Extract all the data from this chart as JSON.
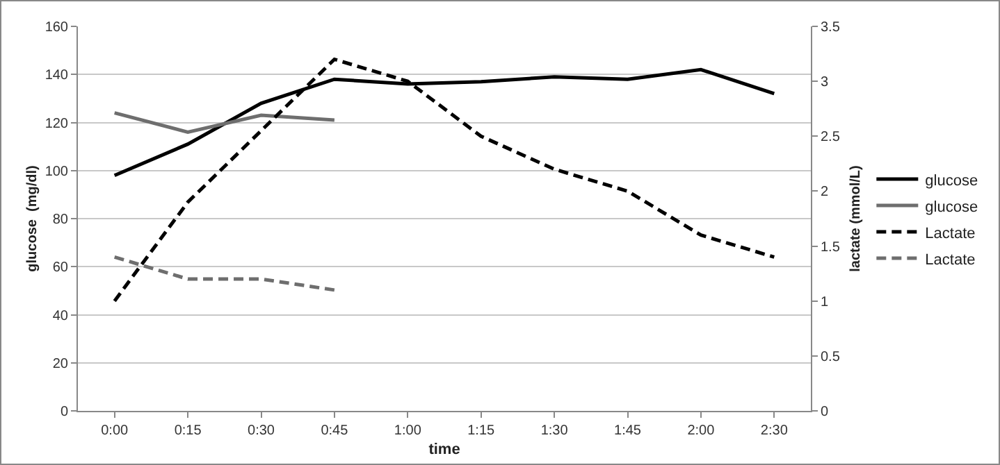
{
  "chart_data": {
    "type": "line",
    "xlabel": "time",
    "ylabel": "glucose  (mg/dl)",
    "y2label": "lactate (mmol/L)",
    "categories": [
      "0:00",
      "0:15",
      "0:30",
      "0:45",
      "1:00",
      "1:15",
      "1:30",
      "1:45",
      "2:00",
      "2:30"
    ],
    "series": [
      {
        "name": "glucose",
        "color": "#000000",
        "line_style": "solid",
        "values": [
          98,
          111,
          128,
          138,
          136,
          137,
          139,
          138,
          142,
          132
        ]
      },
      {
        "name": "glucose",
        "color": "#6e6e6e",
        "line_style": "solid",
        "values": [
          124,
          116,
          123,
          121,
          null,
          null,
          null,
          null,
          null,
          null
        ]
      },
      {
        "name": "Lactate",
        "color": "#000000",
        "line_style": "dashed",
        "axis": "y2",
        "values": [
          1.0,
          1.9,
          2.55,
          3.2,
          3.0,
          2.5,
          2.2,
          2.0,
          1.6,
          1.4
        ]
      },
      {
        "name": "Lactate",
        "color": "#6e6e6e",
        "line_style": "dashed",
        "axis": "y2",
        "values": [
          1.4,
          1.2,
          1.2,
          1.1,
          null,
          null,
          null,
          null,
          null,
          null
        ]
      }
    ],
    "ylim": [
      0,
      160
    ],
    "yticks": [
      0,
      20,
      40,
      60,
      80,
      100,
      120,
      140,
      160
    ],
    "y2lim": [
      0,
      3.5
    ],
    "y2ticks": [
      0,
      0.5,
      1,
      1.5,
      2,
      2.5,
      3,
      3.5
    ],
    "grid": "y",
    "legend": "right",
    "marker": "none"
  }
}
